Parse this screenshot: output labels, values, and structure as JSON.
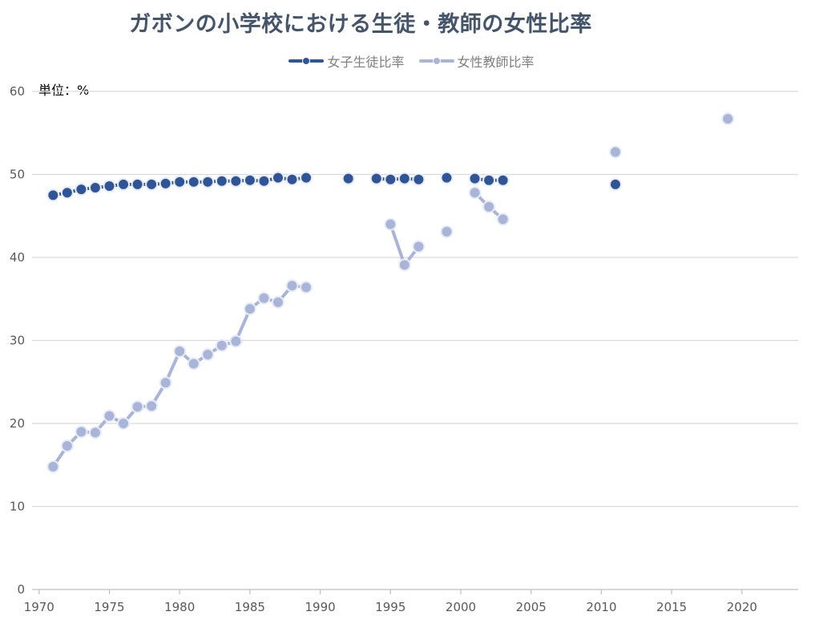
{
  "colors": {
    "students": "#2f5597",
    "teachers": "#a9b4d9",
    "grid": "#d9d9d9",
    "axis": "#bfbfbf"
  },
  "unit_label": "単位：%",
  "chart_data": {
    "type": "line",
    "title": "ガボンの小学校における生徒・教師の女性比率",
    "legend_position": "top",
    "grid": true,
    "x_ticks": [
      1970,
      1975,
      1980,
      1985,
      1990,
      1995,
      2000,
      2005,
      2010,
      2015,
      2020
    ],
    "y_ticks": [
      0,
      10,
      20,
      30,
      40,
      50,
      60
    ],
    "xlim": [
      1969.5,
      2024
    ],
    "ylim": [
      0,
      60
    ],
    "series": [
      {
        "name": "女子生徒比率",
        "points": [
          [
            1971,
            47.5
          ],
          [
            1972,
            47.8
          ],
          [
            1973,
            48.2
          ],
          [
            1974,
            48.4
          ],
          [
            1975,
            48.6
          ],
          [
            1976,
            48.8
          ],
          [
            1977,
            48.8
          ],
          [
            1978,
            48.8
          ],
          [
            1979,
            48.9
          ],
          [
            1980,
            49.1
          ],
          [
            1981,
            49.1
          ],
          [
            1982,
            49.1
          ],
          [
            1983,
            49.2
          ],
          [
            1984,
            49.2
          ],
          [
            1985,
            49.3
          ],
          [
            1986,
            49.2
          ],
          [
            1987,
            49.6
          ],
          [
            1988,
            49.4
          ],
          [
            1989,
            49.6
          ],
          [
            1990,
            null
          ],
          [
            1991,
            null
          ],
          [
            1992,
            49.5
          ],
          [
            1993,
            null
          ],
          [
            1994,
            49.5
          ],
          [
            1995,
            49.4
          ],
          [
            1996,
            49.5
          ],
          [
            1997,
            49.4
          ],
          [
            1998,
            null
          ],
          [
            1999,
            49.6
          ],
          [
            2000,
            null
          ],
          [
            2001,
            49.5
          ],
          [
            2002,
            49.3
          ],
          [
            2003,
            49.3
          ],
          [
            2004,
            null
          ],
          [
            2010,
            null
          ],
          [
            2011,
            48.8
          ],
          [
            2012,
            null
          ]
        ]
      },
      {
        "name": "女性教師比率",
        "points": [
          [
            1971,
            14.8
          ],
          [
            1972,
            17.3
          ],
          [
            1973,
            19.0
          ],
          [
            1974,
            18.9
          ],
          [
            1975,
            20.9
          ],
          [
            1976,
            20.0
          ],
          [
            1977,
            22.0
          ],
          [
            1978,
            22.1
          ],
          [
            1979,
            24.9
          ],
          [
            1980,
            28.7
          ],
          [
            1981,
            27.2
          ],
          [
            1982,
            28.3
          ],
          [
            1983,
            29.4
          ],
          [
            1984,
            29.9
          ],
          [
            1985,
            33.8
          ],
          [
            1986,
            35.1
          ],
          [
            1987,
            34.6
          ],
          [
            1988,
            36.6
          ],
          [
            1989,
            36.4
          ],
          [
            1990,
            null
          ],
          [
            1994,
            null
          ],
          [
            1995,
            44.0
          ],
          [
            1996,
            39.1
          ],
          [
            1997,
            41.3
          ],
          [
            1998,
            null
          ],
          [
            1999,
            43.1
          ],
          [
            2000,
            null
          ],
          [
            2001,
            47.8
          ],
          [
            2002,
            46.1
          ],
          [
            2003,
            44.6
          ],
          [
            2004,
            null
          ],
          [
            2010,
            null
          ],
          [
            2011,
            52.7
          ],
          [
            2012,
            null
          ],
          [
            2018,
            null
          ],
          [
            2019,
            56.7
          ],
          [
            2020,
            null
          ]
        ]
      }
    ]
  }
}
